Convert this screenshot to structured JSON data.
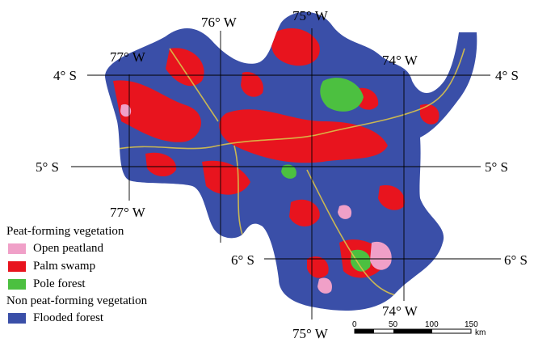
{
  "coordinates": {
    "lat_4s": "4° S",
    "lat_5s": "5° S",
    "lat_6s": "6° S",
    "lon_77w": "77° W",
    "lon_76w": "76° W",
    "lon_75w": "75° W",
    "lon_74w": "74° W"
  },
  "legend": {
    "peat_heading": "Peat-forming vegetation",
    "open_peatland": "Open peatland",
    "palm_swamp": "Palm swamp",
    "pole_forest": "Pole forest",
    "nonpeat_heading": "Non peat-forming vegetation",
    "flooded_forest": "Flooded forest"
  },
  "colors": {
    "open_peatland": "#f0a0c8",
    "palm_swamp": "#e8141e",
    "pole_forest": "#4cc040",
    "flooded_forest": "#3a4fa8"
  },
  "scale_bar": {
    "ticks": [
      "0",
      "50",
      "100",
      "150"
    ],
    "unit": "km"
  }
}
